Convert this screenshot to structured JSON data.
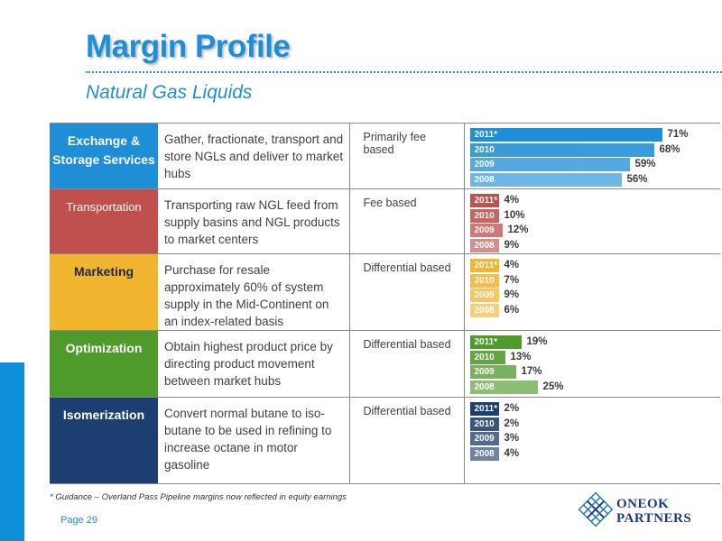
{
  "header": {
    "title": "Margin Profile",
    "subtitle": "Natural Gas Liquids"
  },
  "rows": [
    {
      "segment": "Exchange & Storage Services",
      "description": "Gather, fractionate, transport and store NGLs and deliver to market hubs",
      "type": "Primarily fee based",
      "color": "#1e8fd6",
      "bars": [
        {
          "year": "2011*",
          "value": 71,
          "pct": "71%"
        },
        {
          "year": "2010",
          "value": 68,
          "pct": "68%"
        },
        {
          "year": "2009",
          "value": 59,
          "pct": "59%"
        },
        {
          "year": "2008",
          "value": 56,
          "pct": "56%"
        }
      ]
    },
    {
      "segment": "Transportation",
      "description": "Transporting raw NGL feed from supply basins and NGL products to market centers",
      "type": "Fee based",
      "color": "#c0504d",
      "bars": [
        {
          "year": "2011*",
          "value": 4,
          "pct": "4%"
        },
        {
          "year": "2010",
          "value": 10,
          "pct": "10%"
        },
        {
          "year": "2009",
          "value": 12,
          "pct": "12%"
        },
        {
          "year": "2008",
          "value": 9,
          "pct": "9%"
        }
      ]
    },
    {
      "segment": "Marketing",
      "description": "Purchase for resale approximately 60% of system supply in the Mid-Continent on an index-related basis",
      "type": "Differential based",
      "color": "#f2b530",
      "bars": [
        {
          "year": "2011*",
          "value": 4,
          "pct": "4%"
        },
        {
          "year": "2010",
          "value": 7,
          "pct": "7%"
        },
        {
          "year": "2009",
          "value": 9,
          "pct": "9%"
        },
        {
          "year": "2008",
          "value": 6,
          "pct": "6%"
        }
      ]
    },
    {
      "segment": "Optimization",
      "description": "Obtain highest product price by directing product movement between market hubs",
      "type": "Differential based",
      "color": "#4e9a2a",
      "bars": [
        {
          "year": "2011*",
          "value": 19,
          "pct": "19%"
        },
        {
          "year": "2010",
          "value": 13,
          "pct": "13%"
        },
        {
          "year": "2009",
          "value": 17,
          "pct": "17%"
        },
        {
          "year": "2008",
          "value": 25,
          "pct": "25%"
        }
      ]
    },
    {
      "segment": "Isomerization",
      "description": "Convert normal butane to iso-butane to be used in refining to increase octane in motor gasoline",
      "type": "Differential based",
      "color": "#1d3e70",
      "bars": [
        {
          "year": "2011*",
          "value": 2,
          "pct": "2%"
        },
        {
          "year": "2010",
          "value": 2,
          "pct": "2%"
        },
        {
          "year": "2009",
          "value": 3,
          "pct": "3%"
        },
        {
          "year": "2008",
          "value": 4,
          "pct": "4%"
        }
      ]
    }
  ],
  "footnote": "* Guidance – Overland Pass Pipeline margins now reflected in equity earnings",
  "page": "Page 29",
  "logo": {
    "line1": "ONEOK",
    "line2": "PARTNERS"
  }
}
